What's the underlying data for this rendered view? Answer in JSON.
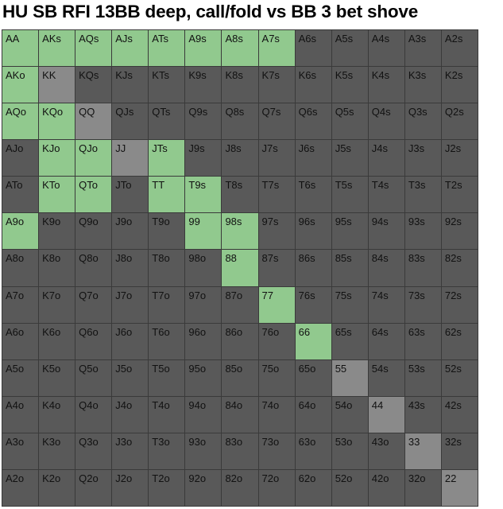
{
  "title": "HU SB RFI 13BB deep, call/fold vs BB 3 bet shove",
  "colors": {
    "call": "#91c98e",
    "fold": "#595959",
    "pair_fold": "#8a8a8a",
    "grid_line": "#3a3a3a"
  },
  "chart_data": {
    "type": "heatmap",
    "ranks": [
      "A",
      "K",
      "Q",
      "J",
      "T",
      "9",
      "8",
      "7",
      "6",
      "5",
      "4",
      "3",
      "2"
    ],
    "rows": [
      [
        "AA",
        "AKs",
        "AQs",
        "AJs",
        "ATs",
        "A9s",
        "A8s",
        "A7s",
        "A6s",
        "A5s",
        "A4s",
        "A3s",
        "A2s"
      ],
      [
        "AKo",
        "KK",
        "KQs",
        "KJs",
        "KTs",
        "K9s",
        "K8s",
        "K7s",
        "K6s",
        "K5s",
        "K4s",
        "K3s",
        "K2s"
      ],
      [
        "AQo",
        "KQo",
        "QQ",
        "QJs",
        "QTs",
        "Q9s",
        "Q8s",
        "Q7s",
        "Q6s",
        "Q5s",
        "Q4s",
        "Q3s",
        "Q2s"
      ],
      [
        "AJo",
        "KJo",
        "QJo",
        "JJ",
        "JTs",
        "J9s",
        "J8s",
        "J7s",
        "J6s",
        "J5s",
        "J4s",
        "J3s",
        "J2s"
      ],
      [
        "ATo",
        "KTo",
        "QTo",
        "JTo",
        "TT",
        "T9s",
        "T8s",
        "T7s",
        "T6s",
        "T5s",
        "T4s",
        "T3s",
        "T2s"
      ],
      [
        "A9o",
        "K9o",
        "Q9o",
        "J9o",
        "T9o",
        "99",
        "98s",
        "97s",
        "96s",
        "95s",
        "94s",
        "93s",
        "92s"
      ],
      [
        "A8o",
        "K8o",
        "Q8o",
        "J8o",
        "T8o",
        "98o",
        "88",
        "87s",
        "86s",
        "85s",
        "84s",
        "83s",
        "82s"
      ],
      [
        "A7o",
        "K7o",
        "Q7o",
        "J7o",
        "T7o",
        "97o",
        "87o",
        "77",
        "76s",
        "75s",
        "74s",
        "73s",
        "72s"
      ],
      [
        "A6o",
        "K6o",
        "Q6o",
        "J6o",
        "T6o",
        "96o",
        "86o",
        "76o",
        "66",
        "65s",
        "64s",
        "63s",
        "62s"
      ],
      [
        "A5o",
        "K5o",
        "Q5o",
        "J5o",
        "T5o",
        "95o",
        "85o",
        "75o",
        "65o",
        "55",
        "54s",
        "53s",
        "52s"
      ],
      [
        "A4o",
        "K4o",
        "Q4o",
        "J4o",
        "T4o",
        "94o",
        "84o",
        "74o",
        "64o",
        "54o",
        "44",
        "43s",
        "42s"
      ],
      [
        "A3o",
        "K3o",
        "Q3o",
        "J3o",
        "T3o",
        "93o",
        "83o",
        "73o",
        "63o",
        "53o",
        "43o",
        "33",
        "32s"
      ],
      [
        "A2o",
        "K2o",
        "Q2o",
        "J2o",
        "T2o",
        "92o",
        "82o",
        "72o",
        "62o",
        "52o",
        "42o",
        "32o",
        "22"
      ]
    ],
    "call_hands": [
      "AA",
      "AKs",
      "AQs",
      "AJs",
      "ATs",
      "A9s",
      "A8s",
      "A7s",
      "AKo",
      "AQo",
      "KQo",
      "KJo",
      "QJo",
      "JTs",
      "KTo",
      "QTo",
      "TT",
      "T9s",
      "A9o",
      "99",
      "98s",
      "88",
      "77",
      "66"
    ]
  }
}
